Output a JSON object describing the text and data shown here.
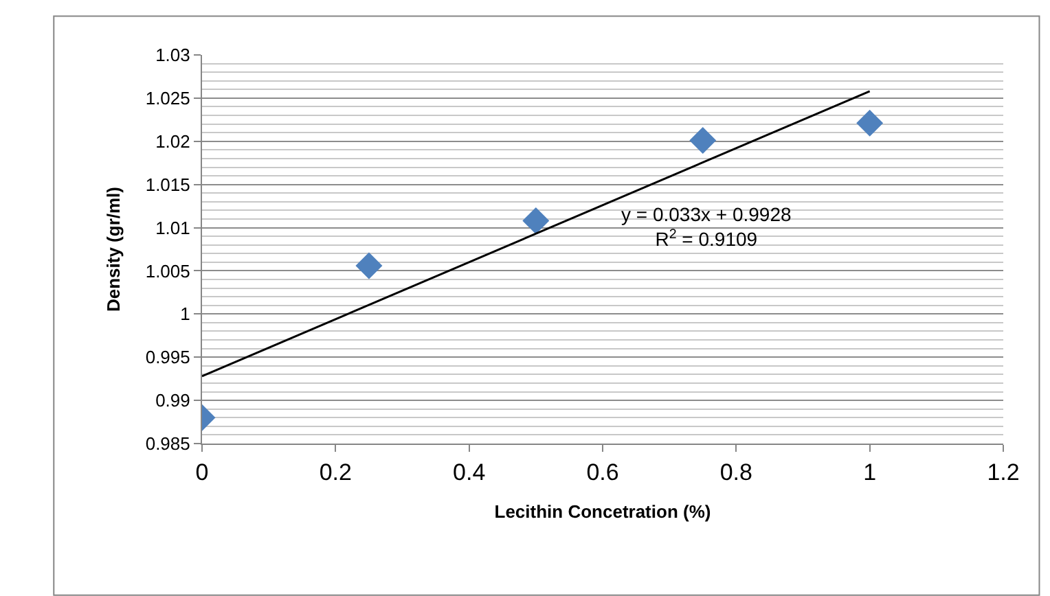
{
  "chart_data": {
    "type": "scatter",
    "xlabel": "Lecithin Concetration (%)",
    "ylabel": "Density (gr/ml)",
    "series": [
      {
        "color": "#4f81bd",
        "marker": "diamond",
        "x": [
          0,
          0.25,
          0.5,
          0.75,
          1
        ],
        "values": [
          0.988,
          1.0056,
          1.0108,
          1.0201,
          1.0221
        ]
      },
      {
        "type": "line",
        "color": "#000000",
        "marker": "none",
        "line_style": "solid",
        "x": [
          0,
          1
        ],
        "values": [
          0.9928,
          1.0258
        ]
      }
    ],
    "annotations": [
      "y = 0.033x + 0.9928\nR$^{2}$ = 0.9109"
    ],
    "xlim": [
      0,
      1.2
    ],
    "xticks": [
      0,
      0.2,
      0.4,
      0.6,
      0.8,
      1,
      1.2
    ],
    "ylim": [
      0.985,
      1.03
    ],
    "yticks": [
      0.985,
      0.99,
      0.995,
      1,
      1.005,
      1.01,
      1.015,
      1.02,
      1.025,
      1.03
    ],
    "grid": "y"
  }
}
